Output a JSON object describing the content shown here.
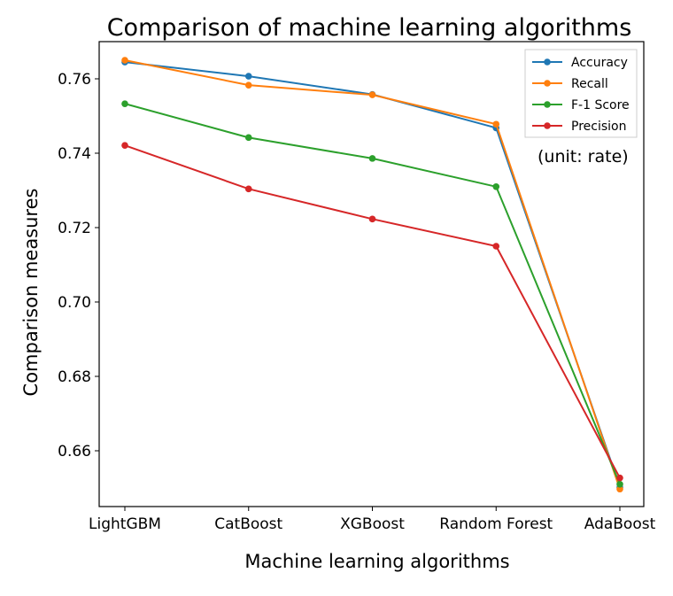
{
  "chart_data": {
    "type": "line",
    "title": "Comparison of machine learning algorithms",
    "xlabel": "Machine learning algorithms",
    "ylabel": "Comparison measures",
    "categories": [
      "LightGBM",
      "CatBoost",
      "XGBoost",
      "Random Forest",
      "AdaBoost"
    ],
    "y_ticks": [
      "0.66",
      "0.68",
      "0.70",
      "0.72",
      "0.74",
      "0.76"
    ],
    "ylim": [
      0.645,
      0.77
    ],
    "grid": false,
    "legend_position": "top-right",
    "annotation": "(unit: rate)",
    "series": [
      {
        "name": "Accuracy",
        "color": "#1f77b4",
        "values": [
          0.7645,
          0.7607,
          0.7558,
          0.7468,
          0.6502
        ]
      },
      {
        "name": "Recall",
        "color": "#ff7f0e",
        "values": [
          0.765,
          0.7583,
          0.7557,
          0.7478,
          0.6497
        ]
      },
      {
        "name": "F-1 Score",
        "color": "#2ca02c",
        "values": [
          0.7533,
          0.7442,
          0.7386,
          0.731,
          0.651
        ]
      },
      {
        "name": "Precision",
        "color": "#d62728",
        "values": [
          0.7421,
          0.7304,
          0.7223,
          0.715,
          0.6527
        ]
      }
    ]
  }
}
